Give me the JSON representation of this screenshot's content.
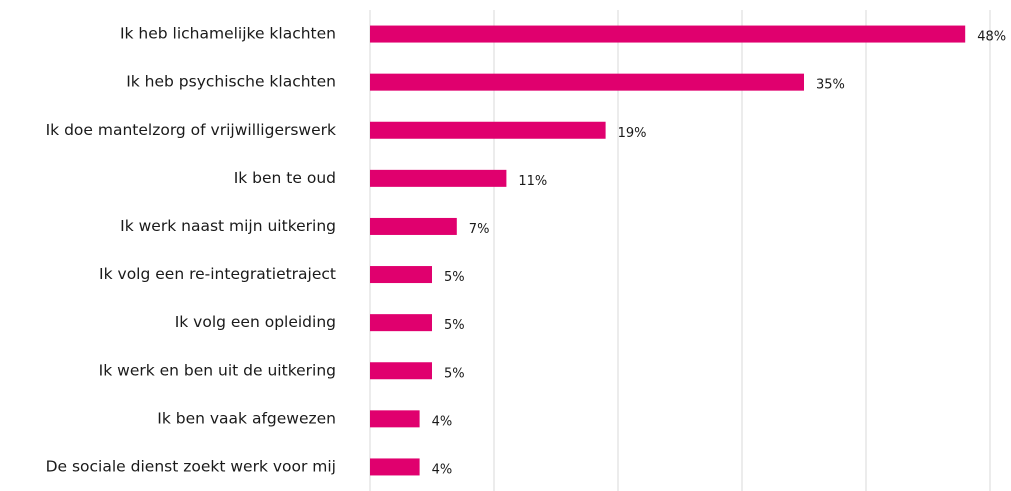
{
  "chart_data": {
    "type": "bar",
    "orientation": "horizontal",
    "categories": [
      "Ik heb lichamelijke klachten",
      "Ik heb psychische klachten",
      "Ik doe mantelzorg of vrijwilligerswerk",
      "Ik ben te oud",
      "Ik werk naast mijn uitkering",
      "Ik volg een re-integratietraject",
      "Ik volg een opleiding",
      "Ik werk en ben uit de uitkering",
      "Ik ben vaak afgewezen",
      "De sociale dienst zoekt werk voor mij"
    ],
    "values": [
      48,
      35,
      19,
      11,
      7,
      5,
      5,
      5,
      4,
      4
    ],
    "value_labels": [
      "48%",
      "35%",
      "19%",
      "11%",
      "7%",
      "5%",
      "5%",
      "5%",
      "4%",
      "4%"
    ],
    "color": "#e0006e",
    "xlim": [
      0,
      50
    ],
    "xticks": [
      0,
      10,
      20,
      30,
      40,
      50
    ],
    "grid": true
  }
}
